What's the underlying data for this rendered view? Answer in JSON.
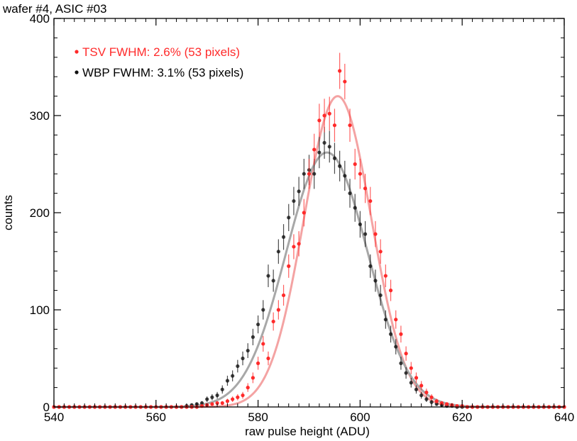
{
  "chart_data": {
    "type": "scatter",
    "title": "wafer #4, ASIC #03",
    "xlabel": "raw pulse height (ADU)",
    "ylabel": "counts",
    "xlim": [
      540,
      640
    ],
    "ylim": [
      0,
      400
    ],
    "xticks": [
      540,
      560,
      580,
      600,
      620,
      640
    ],
    "yticks": [
      0,
      100,
      200,
      300,
      400
    ],
    "grid": false,
    "legend_position": "top-left",
    "series": [
      {
        "name": "TSV FWHM: 2.6% (53 pixels)",
        "color": "#ff2a2a",
        "fit_color": "#f4a3a3",
        "fit": {
          "amplitude": 320,
          "mean": 595.6,
          "sigma": 6.6
        },
        "x": [
          540,
          541,
          542,
          543,
          544,
          545,
          546,
          547,
          548,
          549,
          550,
          551,
          552,
          553,
          554,
          555,
          556,
          557,
          558,
          559,
          560,
          561,
          562,
          563,
          564,
          565,
          566,
          567,
          568,
          569,
          570,
          571,
          572,
          573,
          574,
          575,
          576,
          577,
          578,
          579,
          580,
          581,
          582,
          583,
          584,
          585,
          586,
          587,
          588,
          589,
          590,
          591,
          592,
          593,
          594,
          595,
          596,
          597,
          598,
          599,
          600,
          601,
          602,
          603,
          604,
          605,
          606,
          607,
          608,
          609,
          610,
          611,
          612,
          613,
          614,
          615,
          616,
          617,
          618,
          619,
          620,
          621,
          622,
          623,
          624,
          625,
          626,
          627,
          628,
          629,
          630,
          631,
          632,
          633,
          634,
          635,
          636,
          637,
          638,
          639,
          640
        ],
        "y": [
          0,
          0,
          0,
          0,
          0,
          0,
          0,
          0,
          0,
          0,
          0,
          0,
          0,
          0,
          0,
          0,
          0,
          0,
          0,
          0,
          0,
          0,
          0,
          0,
          0,
          0,
          0,
          0,
          0,
          1,
          2,
          3,
          4,
          4,
          6,
          8,
          10,
          12,
          20,
          30,
          45,
          65,
          50,
          88,
          100,
          115,
          145,
          165,
          168,
          200,
          240,
          265,
          295,
          300,
          302,
          290,
          346,
          335,
          290,
          250,
          240,
          225,
          212,
          178,
          160,
          135,
          120,
          90,
          75,
          55,
          40,
          30,
          22,
          15,
          10,
          6,
          4,
          3,
          2,
          1,
          1,
          0,
          0,
          0,
          0,
          0,
          0,
          0,
          0,
          0,
          0,
          0,
          0,
          0,
          0,
          0,
          0,
          0,
          0,
          0,
          0
        ]
      },
      {
        "name": "WBP FWHM: 3.1% (53 pixels)",
        "color": "#111111",
        "fit_color": "#a8a8a8",
        "fit": {
          "amplitude": 262,
          "mean": 593.5,
          "sigma": 8.0
        },
        "x": [
          540,
          541,
          542,
          543,
          544,
          545,
          546,
          547,
          548,
          549,
          550,
          551,
          552,
          553,
          554,
          555,
          556,
          557,
          558,
          559,
          560,
          561,
          562,
          563,
          564,
          565,
          566,
          567,
          568,
          569,
          570,
          571,
          572,
          573,
          574,
          575,
          576,
          577,
          578,
          579,
          580,
          581,
          582,
          583,
          584,
          585,
          586,
          587,
          588,
          589,
          590,
          591,
          592,
          593,
          594,
          595,
          596,
          597,
          598,
          599,
          600,
          601,
          602,
          603,
          604,
          605,
          606,
          607,
          608,
          609,
          610,
          611,
          612,
          613,
          614,
          615,
          616,
          617,
          618,
          619,
          620,
          621,
          622,
          623,
          624,
          625,
          626,
          627,
          628,
          629,
          630,
          631,
          632,
          633,
          634,
          635,
          636,
          637,
          638,
          639,
          640
        ],
        "y": [
          0,
          0,
          0,
          0,
          0,
          0,
          0,
          0,
          0,
          0,
          0,
          0,
          0,
          0,
          0,
          0,
          0,
          0,
          0,
          0,
          0,
          0,
          0,
          0,
          0,
          0,
          1,
          2,
          3,
          4,
          8,
          10,
          12,
          18,
          27,
          32,
          42,
          50,
          58,
          72,
          85,
          100,
          135,
          130,
          160,
          175,
          195,
          212,
          222,
          240,
          244,
          240,
          262,
          272,
          268,
          256,
          248,
          238,
          220,
          205,
          188,
          178,
          145,
          130,
          115,
          90,
          75,
          62,
          45,
          35,
          25,
          18,
          12,
          8,
          5,
          3,
          2,
          1,
          1,
          0,
          0,
          0,
          0,
          0,
          0,
          0,
          0,
          0,
          0,
          0,
          0,
          0,
          0,
          0,
          0,
          0,
          0,
          0,
          0,
          0,
          0
        ]
      }
    ]
  }
}
